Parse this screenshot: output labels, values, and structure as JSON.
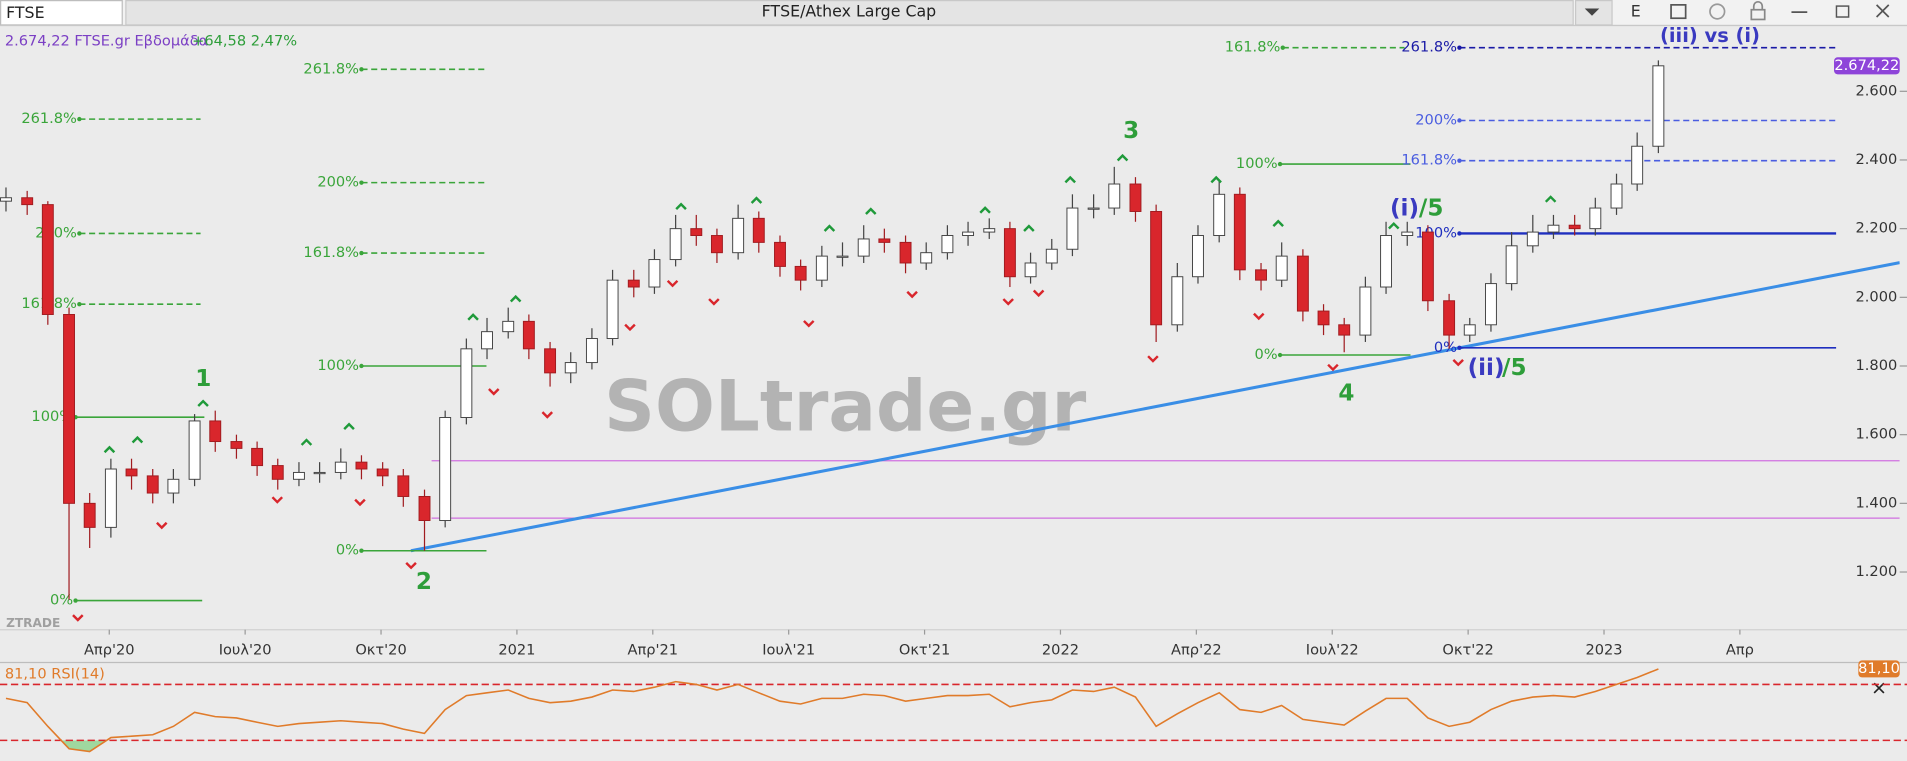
{
  "header": {
    "symbol": "FTSE",
    "title": "FTSE/Athex Large Cap",
    "button": "E"
  },
  "chart_data": [
    {
      "type": "candlestick",
      "info": "2.674,22 FTSE.gr Εβδομάδα",
      "change": "+64,58 2,47%",
      "watermark": "SOLtrade.gr",
      "source": "ZTRADE",
      "last_label": "2.674,22",
      "up_color": "#ffffff",
      "down_color": "#d9262c",
      "badge_color": "#8e44d9",
      "grid": false,
      "x": [
        2020.06,
        2020.099,
        2020.137,
        2020.176,
        2020.214,
        2020.253,
        2020.291,
        2020.33,
        2020.368,
        2020.407,
        2020.445,
        2020.484,
        2020.522,
        2020.56,
        2020.599,
        2020.637,
        2020.676,
        2020.714,
        2020.753,
        2020.791,
        2020.83,
        2020.868,
        2020.907,
        2020.945,
        2020.984,
        2021.022,
        2021.061,
        2021.099,
        2021.138,
        2021.176,
        2021.215,
        2021.253,
        2021.292,
        2021.33,
        2021.368,
        2021.407,
        2021.445,
        2021.484,
        2021.522,
        2021.561,
        2021.599,
        2021.638,
        2021.676,
        2021.715,
        2021.753,
        2021.792,
        2021.83,
        2021.869,
        2021.907,
        2021.945,
        2021.984,
        2022.022,
        2022.061,
        2022.099,
        2022.138,
        2022.176,
        2022.215,
        2022.253,
        2022.292,
        2022.33,
        2022.369,
        2022.407,
        2022.446,
        2022.484,
        2022.522,
        2022.561,
        2022.599,
        2022.638,
        2022.676,
        2022.715,
        2022.753,
        2022.792,
        2022.83,
        2022.869,
        2022.907,
        2022.946,
        2022.984,
        2023.023,
        2023.061,
        2023.1
      ],
      "open": [
        2280,
        2290,
        2270,
        1950,
        1400,
        1330,
        1500,
        1480,
        1430,
        1470,
        1640,
        1580,
        1560,
        1510,
        1470,
        1490,
        1490,
        1520,
        1500,
        1480,
        1420,
        1350,
        1650,
        1850,
        1900,
        1930,
        1850,
        1780,
        1810,
        1880,
        2050,
        2030,
        2110,
        2200,
        2180,
        2130,
        2230,
        2160,
        2090,
        2050,
        2120,
        2120,
        2170,
        2160,
        2100,
        2130,
        2180,
        2190,
        2200,
        2060,
        2100,
        2140,
        2260,
        2260,
        2330,
        2250,
        1920,
        2060,
        2180,
        2300,
        2080,
        2050,
        2120,
        1960,
        1920,
        1890,
        2030,
        2180,
        2190,
        1990,
        1890,
        1920,
        2040,
        2150,
        2190,
        2210,
        2200,
        2260,
        2330,
        2440
      ],
      "high": [
        2320,
        2310,
        2280,
        1970,
        1430,
        1530,
        1530,
        1500,
        1500,
        1660,
        1670,
        1600,
        1580,
        1530,
        1520,
        1520,
        1560,
        1540,
        1520,
        1500,
        1440,
        1670,
        1880,
        1940,
        1970,
        1950,
        1870,
        1840,
        1910,
        2080,
        2080,
        2140,
        2240,
        2240,
        2200,
        2270,
        2250,
        2180,
        2110,
        2150,
        2160,
        2210,
        2200,
        2180,
        2160,
        2210,
        2220,
        2230,
        2220,
        2130,
        2170,
        2300,
        2300,
        2380,
        2350,
        2270,
        2100,
        2210,
        2340,
        2320,
        2100,
        2160,
        2140,
        1980,
        1940,
        2060,
        2220,
        2220,
        2210,
        2010,
        1940,
        2070,
        2190,
        2240,
        2240,
        2240,
        2290,
        2360,
        2480,
        2690
      ],
      "low": [
        2250,
        2240,
        1920,
        1120,
        1270,
        1300,
        1440,
        1400,
        1400,
        1450,
        1550,
        1530,
        1480,
        1440,
        1450,
        1460,
        1470,
        1470,
        1450,
        1390,
        1262,
        1330,
        1630,
        1820,
        1880,
        1820,
        1740,
        1750,
        1790,
        1860,
        2000,
        2010,
        2090,
        2150,
        2100,
        2110,
        2130,
        2060,
        2020,
        2030,
        2090,
        2100,
        2130,
        2070,
        2080,
        2110,
        2150,
        2170,
        2030,
        2040,
        2080,
        2120,
        2230,
        2240,
        2220,
        1870,
        1900,
        2040,
        2160,
        2050,
        2020,
        2030,
        1930,
        1890,
        1840,
        1870,
        2010,
        2150,
        1960,
        1850,
        1870,
        1900,
        2020,
        2130,
        2170,
        2180,
        2180,
        2240,
        2310,
        2420
      ],
      "close": [
        2290,
        2270,
        1950,
        1400,
        1330,
        1500,
        1480,
        1430,
        1470,
        1640,
        1580,
        1560,
        1510,
        1470,
        1490,
        1490,
        1520,
        1500,
        1480,
        1420,
        1350,
        1650,
        1850,
        1900,
        1930,
        1850,
        1780,
        1810,
        1880,
        2050,
        2030,
        2110,
        2200,
        2180,
        2130,
        2230,
        2160,
        2090,
        2050,
        2120,
        2120,
        2170,
        2160,
        2100,
        2130,
        2180,
        2190,
        2200,
        2060,
        2100,
        2140,
        2260,
        2260,
        2330,
        2250,
        1920,
        2060,
        2180,
        2300,
        2080,
        2050,
        2120,
        1960,
        1920,
        1890,
        2030,
        2180,
        2190,
        1990,
        1890,
        1920,
        2040,
        2150,
        2190,
        2210,
        2200,
        2260,
        2330,
        2440,
        2674.22
      ],
      "xlim": [
        2020.049,
        2023.544
      ],
      "xticks": [
        {
          "value": 2020.25,
          "label": "Απρ'20"
        },
        {
          "value": 2020.5,
          "label": "Ιουλ'20"
        },
        {
          "value": 2020.75,
          "label": "Οκτ'20"
        },
        {
          "value": 2021,
          "label": "2021"
        },
        {
          "value": 2021.25,
          "label": "Απρ'21"
        },
        {
          "value": 2021.5,
          "label": "Ιουλ'21"
        },
        {
          "value": 2021.75,
          "label": "Οκτ'21"
        },
        {
          "value": 2022,
          "label": "2022"
        },
        {
          "value": 2022.25,
          "label": "Απρ'22"
        },
        {
          "value": 2022.5,
          "label": "Ιουλ'22"
        },
        {
          "value": 2022.75,
          "label": "Οκτ'22"
        },
        {
          "value": 2023,
          "label": "2023"
        },
        {
          "value": 2023.25,
          "label": "Απρ"
        }
      ],
      "ylim": [
        1032,
        2788
      ],
      "yticks": [
        {
          "value": 1200,
          "label": "1.200"
        },
        {
          "value": 1400,
          "label": "1.400"
        },
        {
          "value": 1600,
          "label": "1.600"
        },
        {
          "value": 1800,
          "label": "1.800"
        },
        {
          "value": 2000,
          "label": "2.000"
        },
        {
          "value": 2200,
          "label": "2.200"
        },
        {
          "value": 2400,
          "label": "2.400"
        },
        {
          "value": 2600,
          "label": "2.600"
        }
      ],
      "fib_levels": [
        {
          "label": "261.8%",
          "value": 2519,
          "x": [
            2020.195,
            2020.418
          ],
          "color": "#3aa53a",
          "style": "dashed"
        },
        {
          "label": "200%",
          "value": 2186,
          "x": [
            2020.195,
            2020.418
          ],
          "color": "#3aa53a",
          "style": "dashed"
        },
        {
          "label": "161.8%",
          "value": 1980,
          "x": [
            2020.195,
            2020.418
          ],
          "color": "#3aa53a",
          "style": "dashed"
        },
        {
          "label": "100%",
          "value": 1651,
          "x": [
            2020.188,
            2020.425
          ],
          "color": "#3aa53a",
          "style": "solid"
        },
        {
          "label": "0%",
          "value": 1117,
          "x": [
            2020.188,
            2020.421
          ],
          "color": "#3aa53a",
          "style": "solid"
        },
        {
          "label": "261.8%",
          "value": 2664,
          "x": [
            2020.714,
            2020.944
          ],
          "color": "#3aa53a",
          "style": "dashed"
        },
        {
          "label": "200%",
          "value": 2334,
          "x": [
            2020.714,
            2020.944
          ],
          "color": "#3aa53a",
          "style": "dashed"
        },
        {
          "label": "161.8%",
          "value": 2129,
          "x": [
            2020.714,
            2020.944
          ],
          "color": "#3aa53a",
          "style": "dashed"
        },
        {
          "label": "100%",
          "value": 1800,
          "x": [
            2020.714,
            2020.944
          ],
          "color": "#3aa53a",
          "style": "solid"
        },
        {
          "label": "0%",
          "value": 1262,
          "x": [
            2020.714,
            2020.944
          ],
          "color": "#3aa53a",
          "style": "solid"
        },
        {
          "label": "161.8%",
          "value": 2727,
          "x": [
            2022.409,
            2022.633
          ],
          "color": "#3aa53a",
          "style": "dashed"
        },
        {
          "label": "100%",
          "value": 2388,
          "x": [
            2022.404,
            2022.644
          ],
          "color": "#3aa53a",
          "style": "solid"
        },
        {
          "label": "0%",
          "value": 1832,
          "x": [
            2022.404,
            2022.644
          ],
          "color": "#3aa53a",
          "style": "solid"
        },
        {
          "label": "261.8%",
          "value": 2727,
          "x": [
            2022.734,
            2023.427
          ],
          "color": "#1a1aa6",
          "style": "dashed"
        },
        {
          "label": "200%",
          "value": 2515,
          "x": [
            2022.734,
            2023.427
          ],
          "color": "#4a5de0",
          "style": "dashed"
        },
        {
          "label": "161.8%",
          "value": 2398,
          "x": [
            2022.734,
            2023.427
          ],
          "color": "#4a5de0",
          "style": "dashed"
        },
        {
          "label": "100%",
          "value": 2186,
          "x": [
            2022.734,
            2023.427
          ],
          "color": "#1f2fbf",
          "style": "solid"
        },
        {
          "label": "0%",
          "value": 1853,
          "x": [
            2022.734,
            2023.427
          ],
          "color": "#1f2fbf",
          "style": "solid"
        }
      ],
      "lines": [
        {
          "x": [
            2020.843,
            2023.544
          ],
          "y": [
            1524,
            1524
          ],
          "color": "#d070e0"
        },
        {
          "x": [
            2020.843,
            2023.544
          ],
          "y": [
            1357,
            1357
          ],
          "color": "#d070e0"
        },
        {
          "x": [
            2020.805,
            2023.544
          ],
          "y": [
            1262,
            2101
          ],
          "color": "#3a8ee6"
        }
      ],
      "wave_labels": [
        {
          "text": "1",
          "x": 2020.423,
          "y": 1761,
          "color": "#2e9e3a"
        },
        {
          "text": "2",
          "x": 2020.829,
          "y": 1170,
          "color": "#2e9e3a"
        },
        {
          "text": "3",
          "x": 2022.13,
          "y": 2483,
          "color": "#2e9e3a"
        },
        {
          "text": "4",
          "x": 2022.526,
          "y": 1719,
          "color": "#2e9e3a"
        },
        {
          "text": "(i)",
          "x": 2022.633,
          "y": 2257,
          "color": "#3a3ac0"
        },
        {
          "text": "/5",
          "x": 2022.682,
          "y": 2257,
          "color": "#2e9e3a"
        },
        {
          "text": "(ii)",
          "x": 2022.783,
          "y": 1793,
          "color": "#3a3ac0"
        },
        {
          "text": "/5",
          "x": 2022.835,
          "y": 1793,
          "color": "#2e9e3a"
        },
        {
          "text": "(iii) vs (i)",
          "x": 2023.195,
          "y": 2759,
          "color": "#3a3ac0"
        }
      ]
    },
    {
      "type": "line",
      "title": "81,10 RSI(14)",
      "last_label": "81,10",
      "color": "#e07b2a",
      "level_color": "#d9262c",
      "fill_color": "#9fd89f",
      "x": [
        2020.06,
        2020.099,
        2020.137,
        2020.176,
        2020.214,
        2020.253,
        2020.291,
        2020.33,
        2020.368,
        2020.407,
        2020.445,
        2020.484,
        2020.522,
        2020.56,
        2020.599,
        2020.637,
        2020.676,
        2020.714,
        2020.753,
        2020.791,
        2020.83,
        2020.868,
        2020.907,
        2020.945,
        2020.984,
        2021.022,
        2021.061,
        2021.099,
        2021.138,
        2021.176,
        2021.215,
        2021.253,
        2021.292,
        2021.33,
        2021.368,
        2021.407,
        2021.445,
        2021.484,
        2021.522,
        2021.561,
        2021.599,
        2021.638,
        2021.676,
        2021.715,
        2021.753,
        2021.792,
        2021.83,
        2021.869,
        2021.907,
        2021.945,
        2021.984,
        2022.022,
        2022.061,
        2022.099,
        2022.138,
        2022.176,
        2022.215,
        2022.253,
        2022.292,
        2022.33,
        2022.369,
        2022.407,
        2022.446,
        2022.484,
        2022.522,
        2022.561,
        2022.599,
        2022.638,
        2022.676,
        2022.715,
        2022.753,
        2022.792,
        2022.83,
        2022.869,
        2022.907,
        2022.946,
        2022.984,
        2023.023,
        2023.061,
        2023.1
      ],
      "values": [
        60,
        57,
        40,
        24,
        22,
        32,
        33,
        34,
        40,
        50,
        47,
        46,
        43,
        40,
        42,
        43,
        44,
        43,
        42,
        38,
        35,
        52,
        62,
        64,
        66,
        60,
        57,
        58,
        61,
        66,
        65,
        68,
        72,
        70,
        66,
        70,
        64,
        58,
        56,
        60,
        60,
        63,
        62,
        58,
        60,
        62,
        62,
        63,
        54,
        57,
        59,
        66,
        65,
        68,
        61,
        40,
        49,
        57,
        64,
        52,
        50,
        55,
        45,
        43,
        41,
        51,
        60,
        60,
        46,
        40,
        43,
        52,
        58,
        61,
        62,
        61,
        65,
        70,
        75,
        81.1
      ],
      "levels": [
        70,
        30
      ],
      "xlim": [
        2020.049,
        2023.544
      ],
      "ylim": [
        17,
        84.8
      ]
    }
  ]
}
